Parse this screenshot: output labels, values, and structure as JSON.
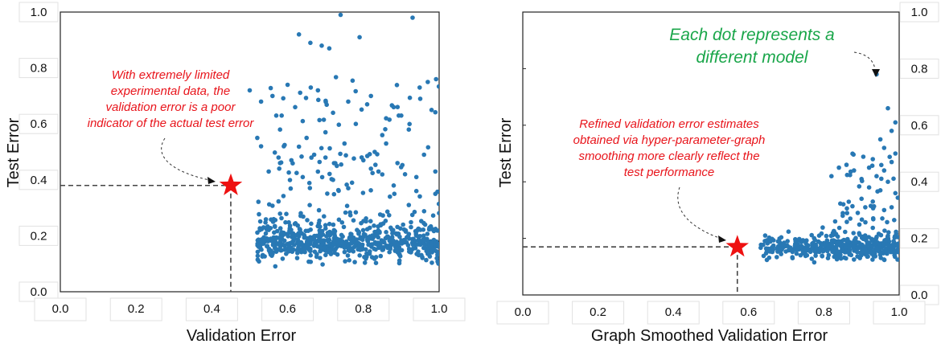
{
  "colors": {
    "dot": "#2878b4",
    "star": "#ee1111",
    "annotation_red": "#e8141b",
    "annotation_green": "#1aa64a",
    "guide": "#444444"
  },
  "chart_data": [
    {
      "type": "scatter",
      "title": "",
      "xlabel": "Validation Error",
      "ylabel": "Test Error",
      "xlim": [
        0.0,
        1.0
      ],
      "ylim": [
        0.0,
        1.0
      ],
      "xticks": [
        "0.0",
        "0.2",
        "0.4",
        "0.6",
        "0.8",
        "1.0"
      ],
      "yticks": [
        "0.0",
        "0.2",
        "0.4",
        "0.6",
        "0.8",
        "1.0"
      ],
      "highlight": {
        "x": 0.45,
        "y": 0.38,
        "marker": "star"
      },
      "annotation": {
        "lines": [
          "With extremely limited",
          "experimental data, the",
          "validation error is a poor",
          "indicator of the actual test error"
        ]
      },
      "points": [
        [
          0.5,
          0.72
        ],
        [
          0.52,
          0.55
        ],
        [
          0.53,
          0.68
        ],
        [
          0.55,
          0.43
        ],
        [
          0.56,
          0.7
        ],
        [
          0.57,
          0.63
        ],
        [
          0.58,
          0.58
        ],
        [
          0.59,
          0.52
        ],
        [
          0.6,
          0.74
        ],
        [
          0.61,
          0.47
        ],
        [
          0.62,
          0.66
        ],
        [
          0.63,
          0.92
        ],
        [
          0.64,
          0.61
        ],
        [
          0.65,
          0.55
        ],
        [
          0.66,
          0.89
        ],
        [
          0.67,
          0.49
        ],
        [
          0.68,
          0.72
        ],
        [
          0.69,
          0.88
        ],
        [
          0.7,
          0.57
        ],
        [
          0.71,
          0.87
        ],
        [
          0.72,
          0.64
        ],
        [
          0.73,
          0.45
        ],
        [
          0.74,
          0.99
        ],
        [
          0.75,
          0.53
        ],
        [
          0.76,
          0.68
        ],
        [
          0.77,
          0.39
        ],
        [
          0.78,
          0.6
        ],
        [
          0.79,
          0.91
        ],
        [
          0.8,
          0.47
        ],
        [
          0.81,
          0.67
        ],
        [
          0.82,
          0.7
        ],
        [
          0.83,
          0.5
        ],
        [
          0.84,
          0.43
        ],
        [
          0.85,
          0.56
        ],
        [
          0.86,
          0.62
        ],
        [
          0.87,
          0.34
        ],
        [
          0.88,
          0.66
        ],
        [
          0.89,
          0.46
        ],
        [
          0.9,
          0.63
        ],
        [
          0.91,
          0.42
        ],
        [
          0.92,
          0.31
        ],
        [
          0.93,
          0.98
        ],
        [
          0.94,
          0.41
        ],
        [
          0.95,
          0.69
        ],
        [
          0.96,
          0.49
        ],
        [
          0.97,
          0.75
        ],
        [
          0.98,
          0.65
        ],
        [
          0.99,
          0.43
        ],
        [
          0.53,
          0.52
        ],
        [
          0.58,
          0.46
        ],
        [
          0.64,
          0.41
        ],
        [
          0.7,
          0.48
        ],
        [
          0.76,
          0.37
        ],
        [
          0.82,
          0.44
        ],
        [
          0.88,
          0.38
        ],
        [
          0.94,
          0.36
        ],
        [
          0.99,
          0.35
        ],
        [
          0.92,
          0.58
        ],
        [
          0.86,
          0.53
        ],
        [
          0.72,
          0.4
        ]
      ]
    },
    {
      "type": "scatter",
      "title": "",
      "xlabel": "Graph Smoothed Validation Error",
      "ylabel": "Test Error",
      "xlim": [
        0.0,
        1.0
      ],
      "ylim": [
        0.0,
        1.0
      ],
      "xticks": [
        "0.0",
        "0.2",
        "0.4",
        "0.6",
        "0.8",
        "1.0"
      ],
      "yticks": [
        "0.0",
        "0.2",
        "0.4",
        "0.6",
        "0.8",
        "1.0"
      ],
      "highlight": {
        "x": 0.57,
        "y": 0.17,
        "marker": "star"
      },
      "annotation": {
        "lines": [
          "Refined validation error estimates",
          "obtained via hyper-parameter-graph",
          "smoothing more clearly reflect the",
          "test performance"
        ]
      },
      "annotation2": {
        "lines": [
          "Each dot represents a",
          "different model"
        ]
      },
      "points": [
        [
          0.94,
          0.78
        ],
        [
          0.97,
          0.66
        ],
        [
          0.98,
          0.58
        ],
        [
          0.99,
          0.61
        ],
        [
          0.95,
          0.55
        ],
        [
          0.93,
          0.48
        ],
        [
          0.96,
          0.52
        ],
        [
          0.92,
          0.45
        ],
        [
          0.9,
          0.41
        ],
        [
          0.88,
          0.44
        ],
        [
          0.86,
          0.46
        ],
        [
          0.84,
          0.45
        ],
        [
          0.82,
          0.42
        ],
        [
          0.98,
          0.47
        ],
        [
          0.97,
          0.4
        ],
        [
          0.95,
          0.37
        ],
        [
          0.93,
          0.33
        ],
        [
          0.99,
          0.36
        ],
        [
          0.91,
          0.31
        ],
        [
          0.89,
          0.29
        ],
        [
          0.87,
          0.27
        ],
        [
          0.85,
          0.28
        ],
        [
          0.83,
          0.26
        ],
        [
          0.94,
          0.42
        ],
        [
          0.96,
          0.44
        ],
        [
          0.99,
          0.5
        ],
        [
          0.98,
          0.31
        ],
        [
          0.92,
          0.38
        ],
        [
          0.96,
          0.3
        ],
        [
          0.9,
          0.34
        ]
      ]
    }
  ]
}
